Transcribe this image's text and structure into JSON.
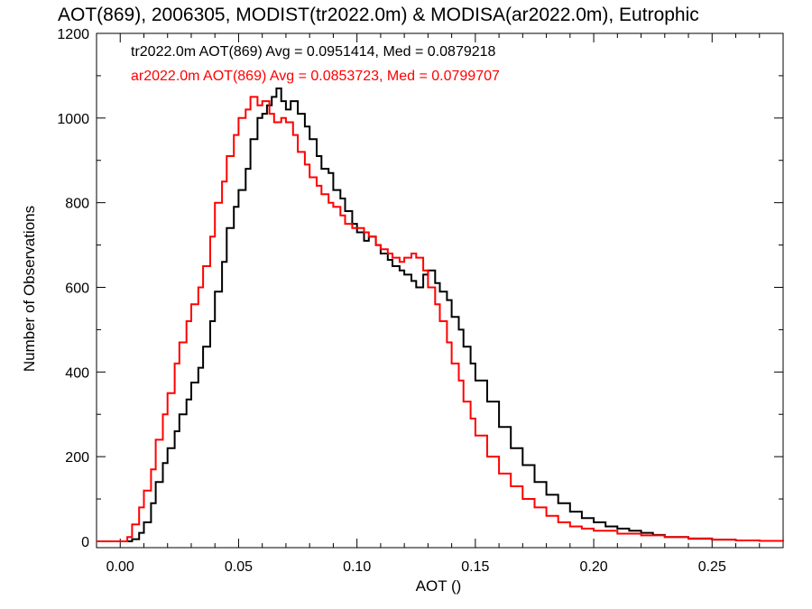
{
  "chart_data": {
    "type": "line",
    "title": "AOT(869), 2006305, MODIST(tr2022.0m) & MODISA(ar2022.0m), Eutrophic",
    "xlabel": "AOT ()",
    "ylabel": "Number of Observations",
    "xlim": [
      -0.01,
      0.28
    ],
    "ylim": [
      -15,
      1200
    ],
    "x_ticks": [
      0.0,
      0.05,
      0.1,
      0.15,
      0.2,
      0.25
    ],
    "x_tick_labels": [
      "0.00",
      "0.05",
      "0.10",
      "0.15",
      "0.20",
      "0.25"
    ],
    "y_ticks": [
      0,
      200,
      400,
      600,
      800,
      1000,
      1200
    ],
    "y_tick_labels": [
      "0",
      "200",
      "400",
      "600",
      "800",
      "1000",
      "1200"
    ],
    "grid": false,
    "legend_position": "top-left",
    "series": [
      {
        "name": "tr2022.0m",
        "label": "tr2022.0m AOT(869) Avg = 0.0951414, Med = 0.0879218",
        "color": "#000000",
        "x": [
          -0.01,
          0.0,
          0.005,
          0.008,
          0.01,
          0.013,
          0.015,
          0.018,
          0.02,
          0.023,
          0.025,
          0.028,
          0.03,
          0.033,
          0.035,
          0.038,
          0.04,
          0.043,
          0.045,
          0.048,
          0.05,
          0.053,
          0.055,
          0.058,
          0.06,
          0.062,
          0.064,
          0.066,
          0.068,
          0.07,
          0.072,
          0.075,
          0.078,
          0.08,
          0.083,
          0.085,
          0.088,
          0.09,
          0.093,
          0.095,
          0.098,
          0.1,
          0.103,
          0.105,
          0.108,
          0.11,
          0.113,
          0.115,
          0.118,
          0.12,
          0.123,
          0.125,
          0.128,
          0.13,
          0.133,
          0.135,
          0.138,
          0.14,
          0.143,
          0.145,
          0.148,
          0.15,
          0.155,
          0.16,
          0.165,
          0.17,
          0.175,
          0.18,
          0.185,
          0.19,
          0.195,
          0.2,
          0.205,
          0.21,
          0.215,
          0.22,
          0.225,
          0.23,
          0.24,
          0.25,
          0.26,
          0.27,
          0.28
        ],
        "y": [
          0,
          0,
          5,
          20,
          45,
          90,
          140,
          185,
          220,
          260,
          300,
          335,
          375,
          410,
          460,
          520,
          590,
          660,
          740,
          790,
          830,
          880,
          950,
          1000,
          1010,
          1030,
          1050,
          1070,
          1040,
          1020,
          1040,
          1010,
          980,
          950,
          910,
          880,
          870,
          830,
          810,
          780,
          750,
          730,
          710,
          720,
          700,
          680,
          665,
          650,
          640,
          630,
          615,
          600,
          630,
          640,
          610,
          590,
          570,
          530,
          500,
          460,
          420,
          380,
          330,
          270,
          220,
          180,
          140,
          110,
          90,
          70,
          55,
          45,
          35,
          30,
          25,
          20,
          15,
          10,
          6,
          4,
          2,
          1,
          0
        ]
      },
      {
        "name": "ar2022.0m",
        "label": "ar2022.0m AOT(869) Avg = 0.0853723, Med = 0.0799707",
        "color": "#ff0000",
        "x": [
          -0.01,
          0.0,
          0.003,
          0.005,
          0.008,
          0.01,
          0.013,
          0.015,
          0.018,
          0.02,
          0.023,
          0.025,
          0.028,
          0.03,
          0.033,
          0.035,
          0.038,
          0.04,
          0.043,
          0.045,
          0.048,
          0.05,
          0.053,
          0.055,
          0.058,
          0.06,
          0.063,
          0.065,
          0.068,
          0.07,
          0.073,
          0.075,
          0.078,
          0.08,
          0.083,
          0.085,
          0.088,
          0.09,
          0.093,
          0.095,
          0.098,
          0.1,
          0.103,
          0.105,
          0.108,
          0.11,
          0.113,
          0.115,
          0.118,
          0.12,
          0.123,
          0.125,
          0.128,
          0.13,
          0.133,
          0.135,
          0.138,
          0.14,
          0.143,
          0.145,
          0.148,
          0.15,
          0.155,
          0.16,
          0.165,
          0.17,
          0.175,
          0.18,
          0.185,
          0.19,
          0.195,
          0.2,
          0.21,
          0.22,
          0.23,
          0.24,
          0.25,
          0.26,
          0.27,
          0.28
        ],
        "y": [
          0,
          0,
          10,
          40,
          80,
          120,
          170,
          240,
          300,
          350,
          420,
          470,
          520,
          560,
          600,
          650,
          720,
          800,
          850,
          910,
          960,
          1000,
          1020,
          1050,
          1030,
          1040,
          1010,
          990,
          1000,
          990,
          960,
          920,
          890,
          860,
          840,
          820,
          800,
          790,
          770,
          750,
          740,
          740,
          730,
          720,
          700,
          690,
          680,
          670,
          660,
          670,
          680,
          670,
          640,
          600,
          560,
          520,
          470,
          420,
          380,
          330,
          290,
          250,
          200,
          160,
          130,
          100,
          80,
          60,
          45,
          35,
          30,
          25,
          18,
          14,
          10,
          7,
          4,
          2,
          1,
          0
        ]
      }
    ]
  }
}
